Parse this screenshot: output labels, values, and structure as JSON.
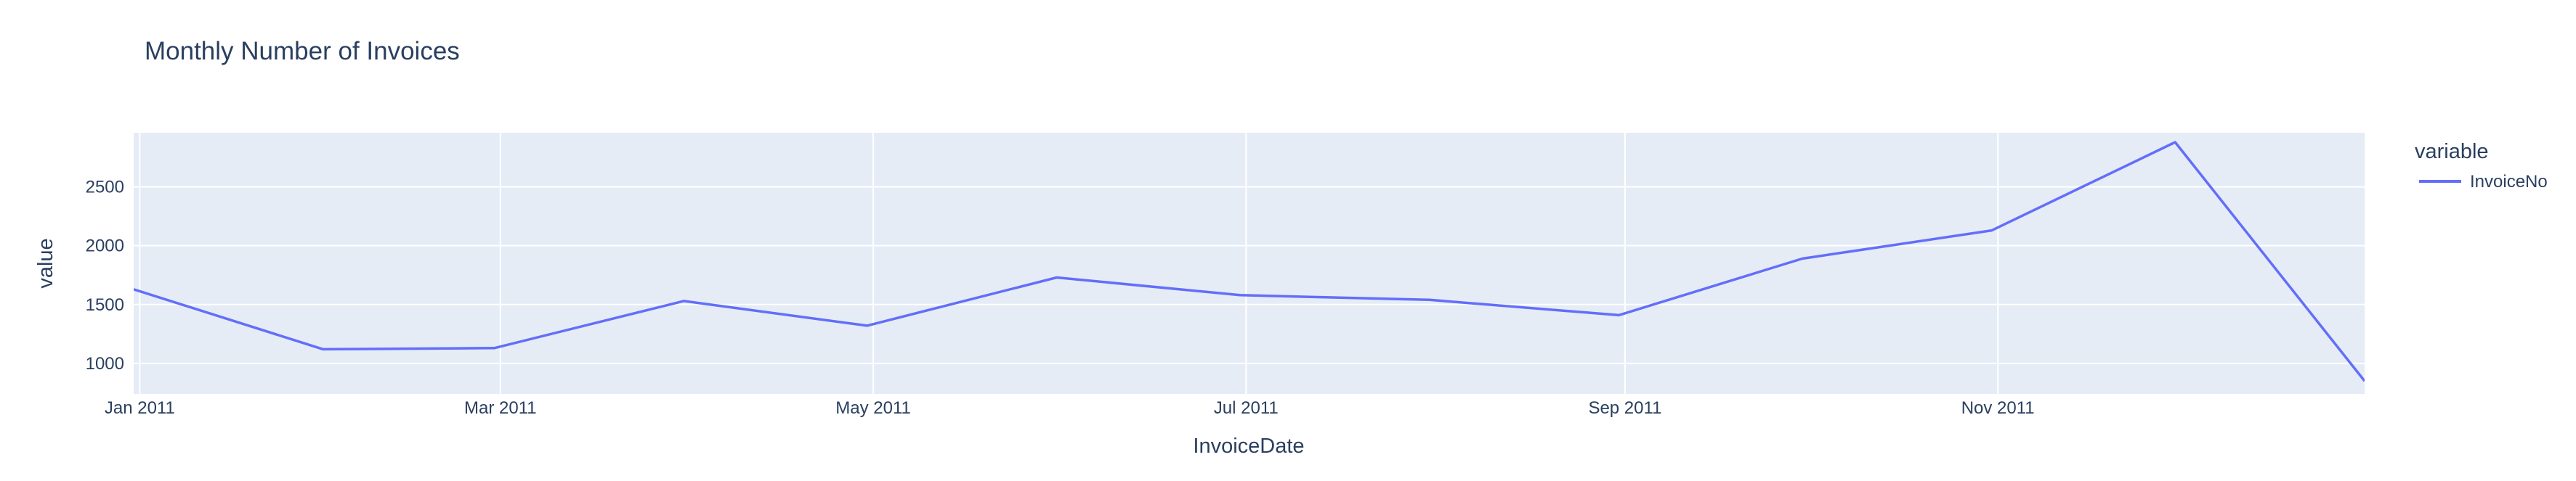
{
  "chart_data": {
    "type": "line",
    "title": "Monthly Number of Invoices",
    "xlabel": "InvoiceDate",
    "ylabel": "value",
    "legend_title": "variable",
    "legend_placement": "top-right",
    "grid": true,
    "x": [
      "2010-12-31",
      "2011-01-31",
      "2011-02-28",
      "2011-03-31",
      "2011-04-30",
      "2011-05-31",
      "2011-06-30",
      "2011-07-31",
      "2011-08-31",
      "2011-09-30",
      "2011-10-31",
      "2011-11-30",
      "2011-12-31"
    ],
    "xlim": [
      "2010-12-31",
      "2011-12-31"
    ],
    "ylim": [
      740,
      2960
    ],
    "x_ticks": [
      {
        "date": "2011-01-01",
        "label": "Jan 2011"
      },
      {
        "date": "2011-03-01",
        "label": "Mar 2011"
      },
      {
        "date": "2011-05-01",
        "label": "May 2011"
      },
      {
        "date": "2011-07-01",
        "label": "Jul 2011"
      },
      {
        "date": "2011-09-01",
        "label": "Sep 2011"
      },
      {
        "date": "2011-11-01",
        "label": "Nov 2011"
      }
    ],
    "y_ticks": [
      1000,
      1500,
      2000,
      2500
    ],
    "series": [
      {
        "name": "InvoiceNo",
        "color": "#636efa",
        "values": [
          1629,
          1120,
          1130,
          1530,
          1320,
          1730,
          1580,
          1540,
          1410,
          1890,
          2130,
          2880,
          850
        ]
      }
    ]
  }
}
